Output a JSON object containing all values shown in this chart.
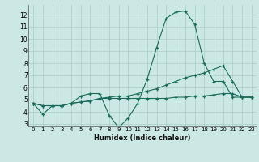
{
  "title": "",
  "xlabel": "Humidex (Indice chaleur)",
  "ylabel": "",
  "background_color": "#cce8e4",
  "grid_color": "#aaccc8",
  "line_color": "#1a6b5a",
  "xlim": [
    -0.5,
    23.5
  ],
  "ylim": [
    2.8,
    12.8
  ],
  "xticks": [
    0,
    1,
    2,
    3,
    4,
    5,
    6,
    7,
    8,
    9,
    10,
    11,
    12,
    13,
    14,
    15,
    16,
    17,
    18,
    19,
    20,
    21,
    22,
    23
  ],
  "yticks": [
    3,
    4,
    5,
    6,
    7,
    8,
    9,
    10,
    11,
    12
  ],
  "series": [
    [
      4.7,
      3.8,
      4.5,
      4.5,
      4.7,
      5.3,
      5.5,
      5.5,
      3.7,
      2.7,
      3.5,
      4.7,
      6.7,
      9.3,
      11.7,
      12.2,
      12.3,
      11.2,
      8.0,
      6.5,
      6.5,
      5.2,
      5.2,
      5.2
    ],
    [
      4.7,
      4.5,
      4.5,
      4.5,
      4.7,
      4.8,
      4.9,
      5.1,
      5.2,
      5.3,
      5.3,
      5.5,
      5.7,
      5.9,
      6.2,
      6.5,
      6.8,
      7.0,
      7.2,
      7.5,
      7.8,
      6.5,
      5.2,
      5.2
    ],
    [
      4.7,
      4.5,
      4.5,
      4.5,
      4.7,
      4.8,
      4.9,
      5.1,
      5.1,
      5.1,
      5.1,
      5.1,
      5.1,
      5.1,
      5.1,
      5.2,
      5.2,
      5.3,
      5.3,
      5.4,
      5.5,
      5.5,
      5.2,
      5.2
    ]
  ]
}
